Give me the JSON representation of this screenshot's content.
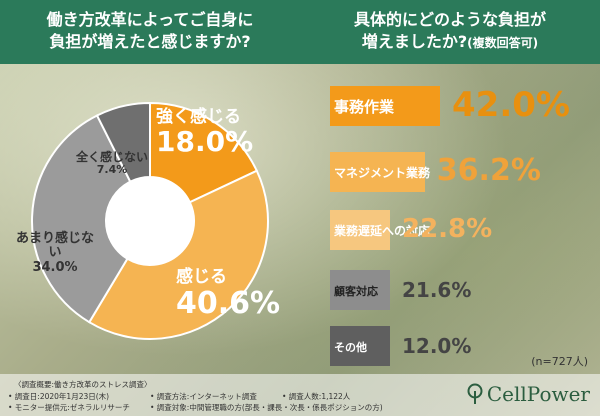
{
  "header": {
    "q1": "働き方改革によってご自身に\n負担が増えたと感じますか?",
    "q2_main": "具体的にどのような負担が\n増えましたか?",
    "q2_sub": "(複数回答可)"
  },
  "colors": {
    "header": "#2b7a5a",
    "orange": "#f39a1a",
    "orange_light": "#f5b452",
    "orange_pale": "#f6c77f",
    "gray": "#8d8d8d",
    "gray_dark": "#5f5f5f",
    "text_orange": "#e8900f"
  },
  "chart_data": [
    {
      "type": "pie",
      "title": "働き方改革によってご自身に負担が増えたと感じますか?",
      "slices": [
        {
          "label": "強く感じる",
          "value": 18.0,
          "text": "18.0%",
          "color": "#f39a1a"
        },
        {
          "label": "感じる",
          "value": 40.6,
          "text": "40.6%",
          "color": "#f5b452"
        },
        {
          "label": "あまり感じない",
          "value": 34.0,
          "text": "34.0%",
          "color": "#9b9b9b"
        },
        {
          "label": "全く感じない",
          "value": 7.4,
          "text": "7.4%",
          "color": "#6f6f6f"
        }
      ]
    },
    {
      "type": "bar",
      "title": "具体的にどのような負担が増えましたか?(複数回答可)",
      "categories": [
        "事務作業",
        "マネジメント業務",
        "業務遅延への対応",
        "顧客対応",
        "その他"
      ],
      "values": [
        42.0,
        36.2,
        22.8,
        21.6,
        12.0
      ],
      "value_text": [
        "42.0%",
        "36.2%",
        "22.8%",
        "21.6%",
        "12.0%"
      ],
      "colors": [
        "#f39a1a",
        "#f5b452",
        "#f6c77f",
        "#8d8d8d",
        "#5f5f5f"
      ]
    }
  ],
  "n_label": "(n=727人)",
  "footer": {
    "title": "〈調査概要:働き方改革のストレス調査〉",
    "date": "• 調査日:2020年1月23日(木)",
    "monitor": "• モニター提供元:ゼネラルリサーチ",
    "method": "• 調査方法:インターネット調査",
    "target": "• 調査対象:中間管理職の方(部長・課長・次長・係長ポジションの方)",
    "count": "• 調査人数:1,122人"
  },
  "logo": "CellPower"
}
